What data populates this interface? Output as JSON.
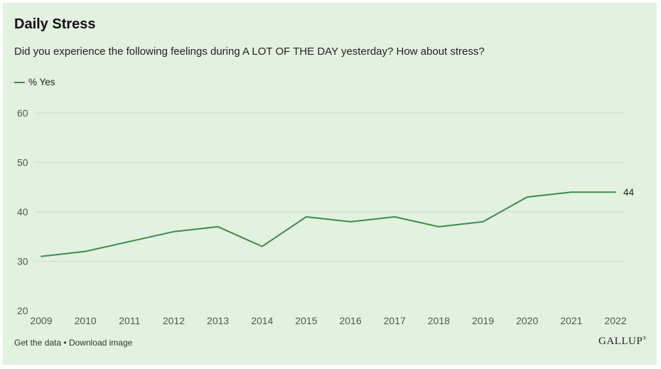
{
  "header": {
    "title": "Daily Stress",
    "subtitle": "Did you experience the following feelings during A LOT OF THE DAY yesterday? How about stress?"
  },
  "footer": {
    "get_data": "Get the data",
    "separator": "•",
    "download": "Download image",
    "logo": "GALLUP"
  },
  "colors": {
    "line": "#3d8b4a",
    "background": "#e3f1e0",
    "grid": "#cfdccc"
  },
  "chart_data": {
    "type": "line",
    "title": "Daily Stress",
    "subtitle": "Did you experience the following feelings during A LOT OF THE DAY yesterday? How about stress?",
    "x": [
      "2009",
      "2010",
      "2011",
      "2012",
      "2013",
      "2014",
      "2015",
      "2016",
      "2017",
      "2018",
      "2019",
      "2020",
      "2021",
      "2022"
    ],
    "series": [
      {
        "name": "% Yes",
        "values": [
          31,
          32,
          34,
          36,
          37,
          33,
          39,
          38,
          39,
          37,
          38,
          43,
          44,
          44
        ]
      }
    ],
    "ylim": [
      20,
      60
    ],
    "yticks": [
      20,
      30,
      40,
      50,
      60
    ],
    "end_label": "44",
    "legend": "top-left",
    "grid": true
  }
}
